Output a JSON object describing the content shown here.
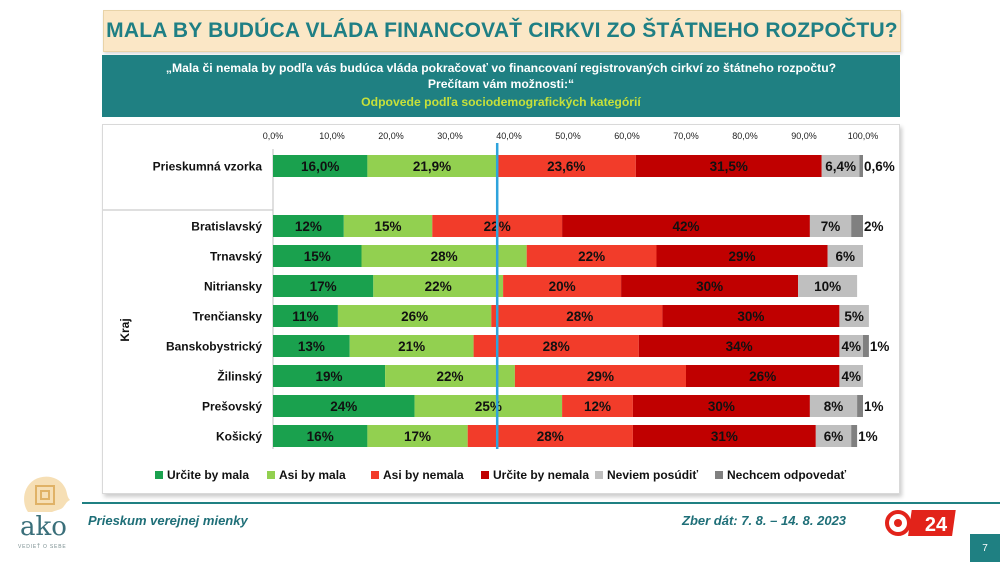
{
  "title": "MALA BY BUDÚCA VLÁDA FINANCOVAŤ CIRKVI ZO ŠTÁTNEHO ROZPOČTU?",
  "question": "„Mala či nemala by podľa vás budúca vláda pokračovať vo financovaní registrovaných cirkví zo štátneho rozpočtu? Prečítam vám možnosti:“",
  "subtitle": "Odpovede podľa sociodemografických kategórií",
  "footer": {
    "survey": "Prieskum verejnej mienky",
    "dates": "Zber dát: 7. 8. – 14. 8. 2023",
    "page": "7",
    "logo_text": "ako",
    "logo_tagline": "VEDIEŤ O SEBE",
    "logo_24": "24"
  },
  "colors": {
    "teal": "#1f8082",
    "urcite_by_mala": "#1aa14e",
    "asi_by_mala": "#92d050",
    "asi_by_nemala": "#f23c2a",
    "urcite_by_nemala": "#c00000",
    "neviem": "#bfbfbf",
    "nechcem": "#808080",
    "reference_line": "#2ea3dc"
  },
  "chart_data": {
    "type": "bar",
    "orientation": "horizontal",
    "stacked": true,
    "xlim": [
      0,
      100
    ],
    "tick_labels": [
      "0,0%",
      "10,0%",
      "20,0%",
      "30,0%",
      "40,0%",
      "50,0%",
      "60,0%",
      "70,0%",
      "80,0%",
      "90,0%",
      "100,0%"
    ],
    "reference_line_value": 38.0,
    "group_label": "Kraj",
    "legend": [
      "Určite by mala",
      "Asi by mala",
      "Asi by nemala",
      "Určite by nemala",
      "Neviem posúdiť",
      "Nechcem odpovedať"
    ],
    "legend_position": "bottom",
    "rows": [
      {
        "category": "Prieskumná vzorka",
        "values": [
          16.0,
          21.9,
          23.6,
          31.5,
          6.4,
          0.6
        ],
        "labels": [
          "16,0%",
          "21,9%",
          "23,6%",
          "31,5%",
          "6,4%",
          "0,6%"
        ]
      },
      {
        "category": "Bratislavský",
        "values": [
          12,
          15,
          22,
          42,
          7,
          2
        ],
        "labels": [
          "12%",
          "15%",
          "22%",
          "42%",
          "7%",
          "2%"
        ]
      },
      {
        "category": "Trnavský",
        "values": [
          15,
          28,
          22,
          29,
          6,
          0
        ],
        "labels": [
          "15%",
          "28%",
          "22%",
          "29%",
          "6%",
          ""
        ]
      },
      {
        "category": "Nitriansky",
        "values": [
          17,
          22,
          20,
          30,
          10,
          0
        ],
        "labels": [
          "17%",
          "22%",
          "20%",
          "30%",
          "10%",
          ""
        ]
      },
      {
        "category": "Trenčiansky",
        "values": [
          11,
          26,
          1,
          28,
          30,
          5
        ],
        "labels": [
          "11%",
          "26%",
          "",
          "28%",
          "30%",
          "5%"
        ],
        "colors_override": [
          "#1aa14e",
          "#92d050",
          "#f23c2a",
          "#f23c2a",
          "#c00000",
          "#bfbfbf"
        ]
      },
      {
        "category": "Banskobystrický",
        "values": [
          13,
          21,
          28,
          34,
          4,
          1
        ],
        "labels": [
          "13%",
          "21%",
          "28%",
          "34%",
          "4%",
          "1%"
        ]
      },
      {
        "category": "Žilinský",
        "values": [
          19,
          22,
          29,
          26,
          4,
          0
        ],
        "labels": [
          "19%",
          "22%",
          "29%",
          "26%",
          "4%",
          ""
        ]
      },
      {
        "category": "Prešovský",
        "values": [
          24,
          25,
          12,
          30,
          8,
          1
        ],
        "labels": [
          "24%",
          "25%",
          "12%",
          "30%",
          "8%",
          "1%"
        ]
      },
      {
        "category": "Košický",
        "values": [
          16,
          17,
          28,
          31,
          6,
          1
        ],
        "labels": [
          "16%",
          "17%",
          "28%",
          "31%",
          "6%",
          "1%"
        ]
      }
    ]
  }
}
